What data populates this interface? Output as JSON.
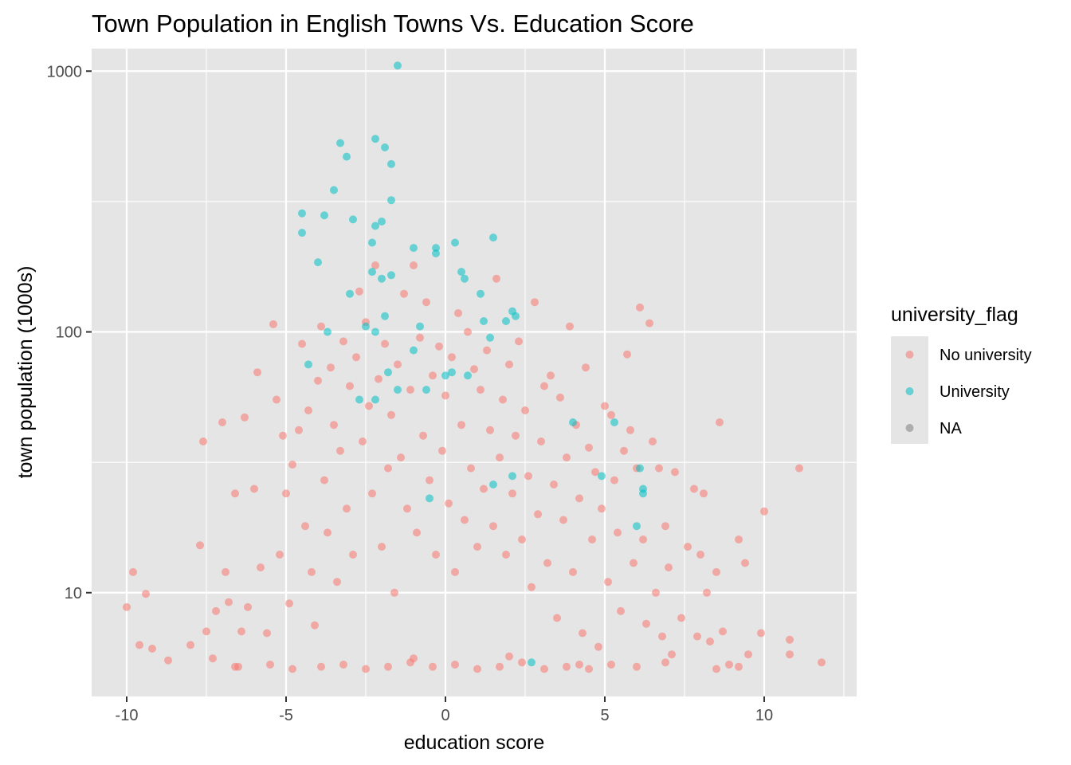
{
  "chart_data": {
    "type": "scatter",
    "title": "Town Population in English Towns Vs. Education Score",
    "xlabel": "education score",
    "ylabel": "town population (1000s)",
    "xlim": [
      -11.1,
      12.9
    ],
    "ylim": [
      4.0,
      1220
    ],
    "y_scale": "log10",
    "x_ticks": [
      -10,
      -5,
      0,
      5,
      10
    ],
    "x_tick_labels": [
      "-10",
      "-5",
      "0",
      "5",
      "10"
    ],
    "y_ticks": [
      10,
      100,
      1000
    ],
    "y_tick_labels": [
      "10",
      "100",
      "1000"
    ],
    "grid": true,
    "legend": {
      "title": "university_flag",
      "position": "right",
      "entries": [
        {
          "label": "No university",
          "color": "#F8766D"
        },
        {
          "label": "University",
          "color": "#00BFC4"
        },
        {
          "label": "NA",
          "color": "#7F7F7F"
        }
      ]
    },
    "series": [
      {
        "name": "University",
        "color": "#00BFC4",
        "points": [
          [
            -1.5,
            1050
          ],
          [
            -2.2,
            550
          ],
          [
            -1.9,
            510
          ],
          [
            -3.3,
            530
          ],
          [
            -3.1,
            470
          ],
          [
            -1.7,
            440
          ],
          [
            -3.5,
            350
          ],
          [
            -1.7,
            320
          ],
          [
            -4.5,
            285
          ],
          [
            -3.8,
            280
          ],
          [
            -2.9,
            270
          ],
          [
            -2.2,
            255
          ],
          [
            -2.0,
            265
          ],
          [
            -4.5,
            240
          ],
          [
            -2.3,
            220
          ],
          [
            -4.0,
            185
          ],
          [
            -2.3,
            170
          ],
          [
            -1.7,
            165
          ],
          [
            -2.0,
            160
          ],
          [
            -3.0,
            140
          ],
          [
            1.1,
            140
          ],
          [
            0.6,
            160
          ],
          [
            1.5,
            230
          ],
          [
            -1.0,
            210
          ],
          [
            -0.3,
            210
          ],
          [
            -0.3,
            200
          ],
          [
            0.3,
            220
          ],
          [
            0.5,
            170
          ],
          [
            2.1,
            120
          ],
          [
            2.2,
            115
          ],
          [
            1.4,
            95
          ],
          [
            1.9,
            110
          ],
          [
            -1.9,
            115
          ],
          [
            -2.5,
            105
          ],
          [
            -2.2,
            100
          ],
          [
            -4.3,
            75
          ],
          [
            -3.7,
            100
          ],
          [
            -1.0,
            85
          ],
          [
            -2.2,
            55
          ],
          [
            -0.6,
            60
          ],
          [
            -1.5,
            60
          ],
          [
            4.0,
            45
          ],
          [
            5.3,
            45
          ],
          [
            6.1,
            30
          ],
          [
            2.1,
            28
          ],
          [
            6.2,
            25
          ],
          [
            1.5,
            26
          ],
          [
            6.2,
            24
          ],
          [
            6.0,
            18
          ],
          [
            -0.5,
            23
          ],
          [
            0.2,
            70
          ],
          [
            -1.8,
            70
          ],
          [
            -2.7,
            55
          ],
          [
            0.7,
            68
          ],
          [
            1.2,
            110
          ],
          [
            -0.8,
            105
          ],
          [
            0.0,
            68
          ],
          [
            2.7,
            5.4
          ],
          [
            4.9,
            28
          ]
        ]
      },
      {
        "name": "No university",
        "color": "#F8766D",
        "points": [
          [
            -10.0,
            8.8
          ],
          [
            -9.8,
            12.0
          ],
          [
            -9.6,
            6.3
          ],
          [
            -9.4,
            9.9
          ],
          [
            -9.2,
            6.1
          ],
          [
            -8.7,
            5.5
          ],
          [
            -8.0,
            6.3
          ],
          [
            -7.7,
            15.2
          ],
          [
            -7.6,
            38.0
          ],
          [
            -7.5,
            7.1
          ],
          [
            -7.3,
            5.6
          ],
          [
            -7.2,
            8.5
          ],
          [
            -7.0,
            45.0
          ],
          [
            -6.9,
            12.0
          ],
          [
            -6.8,
            9.2
          ],
          [
            -6.6,
            24.0
          ],
          [
            -6.4,
            7.1
          ],
          [
            -6.3,
            47.0
          ],
          [
            -6.2,
            8.8
          ],
          [
            -6.0,
            25.0
          ],
          [
            -5.9,
            70.0
          ],
          [
            -5.8,
            12.5
          ],
          [
            -5.6,
            7.0
          ],
          [
            -5.4,
            107.0
          ],
          [
            -5.3,
            55.0
          ],
          [
            -5.2,
            14.0
          ],
          [
            -5.1,
            40.0
          ],
          [
            -5.0,
            24.0
          ],
          [
            -4.9,
            9.1
          ],
          [
            -4.8,
            31.0
          ],
          [
            -4.6,
            42.0
          ],
          [
            -4.5,
            90.0
          ],
          [
            -4.4,
            18.0
          ],
          [
            -4.3,
            50.0
          ],
          [
            -4.2,
            12.0
          ],
          [
            -4.1,
            7.5
          ],
          [
            -4.0,
            65.0
          ],
          [
            -3.9,
            105.0
          ],
          [
            -3.8,
            27.0
          ],
          [
            -3.7,
            17.0
          ],
          [
            -3.6,
            73.0
          ],
          [
            -3.5,
            44.0
          ],
          [
            -3.4,
            11.0
          ],
          [
            -3.3,
            35.0
          ],
          [
            -3.2,
            92.0
          ],
          [
            -3.1,
            21.0
          ],
          [
            -3.0,
            62.0
          ],
          [
            -2.9,
            14.0
          ],
          [
            -2.8,
            80.0
          ],
          [
            -2.7,
            143.0
          ],
          [
            -2.6,
            38.0
          ],
          [
            -2.5,
            109.0
          ],
          [
            -2.4,
            52.0
          ],
          [
            -2.3,
            24.0
          ],
          [
            -2.2,
            180.0
          ],
          [
            -2.1,
            66.0
          ],
          [
            -2.0,
            15.0
          ],
          [
            -1.9,
            90.0
          ],
          [
            -1.8,
            30.0
          ],
          [
            -1.7,
            48.0
          ],
          [
            -1.6,
            10.0
          ],
          [
            -1.5,
            75.0
          ],
          [
            -1.4,
            33.0
          ],
          [
            -1.3,
            140.0
          ],
          [
            -1.2,
            21.0
          ],
          [
            -1.1,
            60.0
          ],
          [
            -1.0,
            180.0
          ],
          [
            -0.9,
            17.0
          ],
          [
            -0.8,
            95.0
          ],
          [
            -0.7,
            40.0
          ],
          [
            -0.6,
            130.0
          ],
          [
            -0.5,
            27.0
          ],
          [
            -0.4,
            68.0
          ],
          [
            -0.3,
            14.0
          ],
          [
            -0.2,
            88.0
          ],
          [
            -0.1,
            35.0
          ],
          [
            0.0,
            57.0
          ],
          [
            0.1,
            22.0
          ],
          [
            0.2,
            80.0
          ],
          [
            0.3,
            12.0
          ],
          [
            0.4,
            118.0
          ],
          [
            0.5,
            44.0
          ],
          [
            0.6,
            19.0
          ],
          [
            0.7,
            100.0
          ],
          [
            0.8,
            30.0
          ],
          [
            0.9,
            72.0
          ],
          [
            1.0,
            15.0
          ],
          [
            1.1,
            60.0
          ],
          [
            1.2,
            25.0
          ],
          [
            1.3,
            85.0
          ],
          [
            1.4,
            42.0
          ],
          [
            1.5,
            18.0
          ],
          [
            1.6,
            160.0
          ],
          [
            1.7,
            33.0
          ],
          [
            1.8,
            55.0
          ],
          [
            1.9,
            14.0
          ],
          [
            2.0,
            75.0
          ],
          [
            2.1,
            24.0
          ],
          [
            2.2,
            40.0
          ],
          [
            2.3,
            92.0
          ],
          [
            2.4,
            16.0
          ],
          [
            2.5,
            50.0
          ],
          [
            2.6,
            28.0
          ],
          [
            2.7,
            10.5
          ],
          [
            2.8,
            130.0
          ],
          [
            2.9,
            20.0
          ],
          [
            3.0,
            38.0
          ],
          [
            3.1,
            62.0
          ],
          [
            3.2,
            13.0
          ],
          [
            3.3,
            68.0
          ],
          [
            3.4,
            26.0
          ],
          [
            3.5,
            8.0
          ],
          [
            3.6,
            56.0
          ],
          [
            3.7,
            19.0
          ],
          [
            3.8,
            33.0
          ],
          [
            3.9,
            105.0
          ],
          [
            4.0,
            12.0
          ],
          [
            4.1,
            44.0
          ],
          [
            4.2,
            23.0
          ],
          [
            4.3,
            7.0
          ],
          [
            4.4,
            73.0
          ],
          [
            4.5,
            36.0
          ],
          [
            4.6,
            16.0
          ],
          [
            4.7,
            29.0
          ],
          [
            4.8,
            6.2
          ],
          [
            4.9,
            21.0
          ],
          [
            5.0,
            52.0
          ],
          [
            5.1,
            11.0
          ],
          [
            5.2,
            48.0
          ],
          [
            5.3,
            27.0
          ],
          [
            5.4,
            17.0
          ],
          [
            5.5,
            8.5
          ],
          [
            5.6,
            35.0
          ],
          [
            5.7,
            82.0
          ],
          [
            5.8,
            42.0
          ],
          [
            5.9,
            13.0
          ],
          [
            6.0,
            30.0
          ],
          [
            6.1,
            124.0
          ],
          [
            6.2,
            16.0
          ],
          [
            6.3,
            7.6
          ],
          [
            6.4,
            108.0
          ],
          [
            6.5,
            38.0
          ],
          [
            6.6,
            10.0
          ],
          [
            6.7,
            30.0
          ],
          [
            6.8,
            6.8
          ],
          [
            6.9,
            18.0
          ],
          [
            7.0,
            12.5
          ],
          [
            7.1,
            5.8
          ],
          [
            7.2,
            29.0
          ],
          [
            7.4,
            8.0
          ],
          [
            7.6,
            15.0
          ],
          [
            7.8,
            25.0
          ],
          [
            7.9,
            6.8
          ],
          [
            8.0,
            14.0
          ],
          [
            8.1,
            24.0
          ],
          [
            8.2,
            10.0
          ],
          [
            8.3,
            6.5
          ],
          [
            8.5,
            12.0
          ],
          [
            8.6,
            45.0
          ],
          [
            8.7,
            7.1
          ],
          [
            8.9,
            5.3
          ],
          [
            9.2,
            16.0
          ],
          [
            9.4,
            13.0
          ],
          [
            9.5,
            5.8
          ],
          [
            9.9,
            7.0
          ],
          [
            10.0,
            20.5
          ],
          [
            10.8,
            6.6
          ],
          [
            10.8,
            5.8
          ],
          [
            11.1,
            30.0
          ],
          [
            11.8,
            5.4
          ],
          [
            -6.5,
            5.2
          ],
          [
            -5.5,
            5.3
          ],
          [
            -4.8,
            5.1
          ],
          [
            -3.9,
            5.2
          ],
          [
            -3.2,
            5.3
          ],
          [
            -2.5,
            5.1
          ],
          [
            -1.8,
            5.2
          ],
          [
            -1.1,
            5.4
          ],
          [
            -0.4,
            5.2
          ],
          [
            0.3,
            5.3
          ],
          [
            1.0,
            5.1
          ],
          [
            1.7,
            5.2
          ],
          [
            2.4,
            5.4
          ],
          [
            3.1,
            5.1
          ],
          [
            3.8,
            5.2
          ],
          [
            4.5,
            5.1
          ],
          [
            5.2,
            5.3
          ],
          [
            6.0,
            5.2
          ],
          [
            6.9,
            5.4
          ],
          [
            8.5,
            5.1
          ],
          [
            9.2,
            5.2
          ],
          [
            -6.6,
            5.2
          ],
          [
            -1.0,
            5.6
          ],
          [
            2.0,
            5.7
          ],
          [
            4.2,
            5.3
          ]
        ]
      },
      {
        "name": "NA",
        "color": "#7F7F7F",
        "points": []
      }
    ]
  }
}
